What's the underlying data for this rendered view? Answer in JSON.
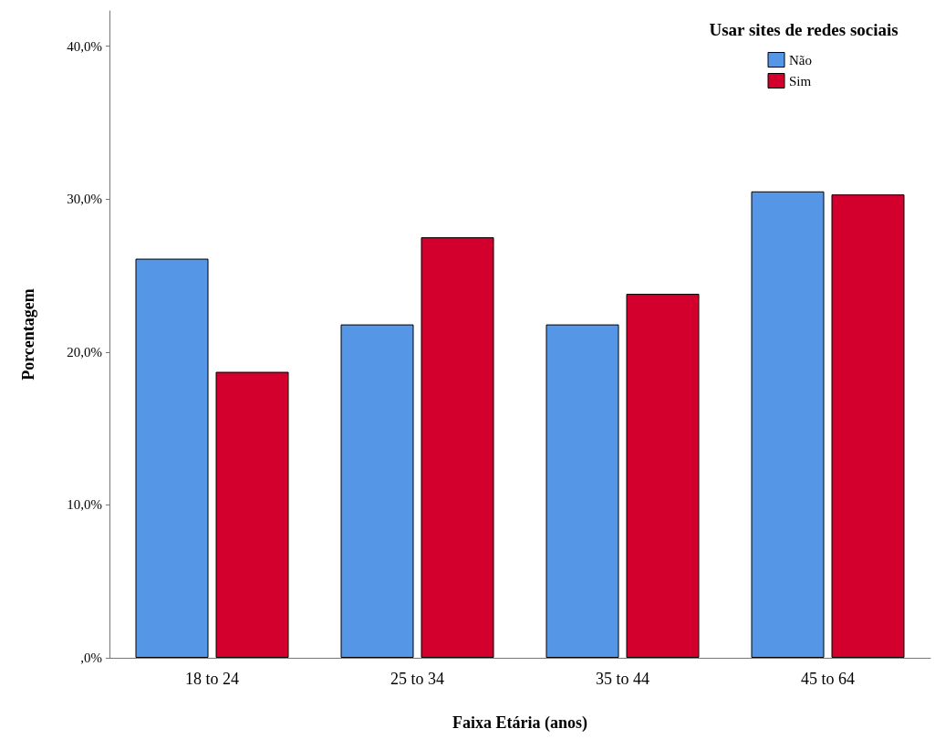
{
  "chart_data": {
    "type": "bar",
    "xlabel": "Faixa Etária (anos)",
    "ylabel": "Porcentagem",
    "legend_title": "Usar sites de redes sociais",
    "categories": [
      "18 to 24",
      "25 to 34",
      "35 to 44",
      "45 to 64"
    ],
    "series": [
      {
        "name": "Não",
        "color": "#5596e6",
        "values": [
          26.1,
          21.8,
          21.8,
          30.5
        ]
      },
      {
        "name": "Sim",
        "color": "#d3002e",
        "values": [
          18.7,
          27.5,
          23.8,
          30.3
        ]
      }
    ],
    "ylim": [
      0,
      42.3
    ],
    "yticks": [
      {
        "value": 0,
        "label": ",0%"
      },
      {
        "value": 10,
        "label": "10,0%"
      },
      {
        "value": 20,
        "label": "20,0%"
      },
      {
        "value": 30,
        "label": "30,0%"
      },
      {
        "value": 40,
        "label": "40,0%"
      }
    ],
    "grid": false,
    "legend": "top right"
  }
}
